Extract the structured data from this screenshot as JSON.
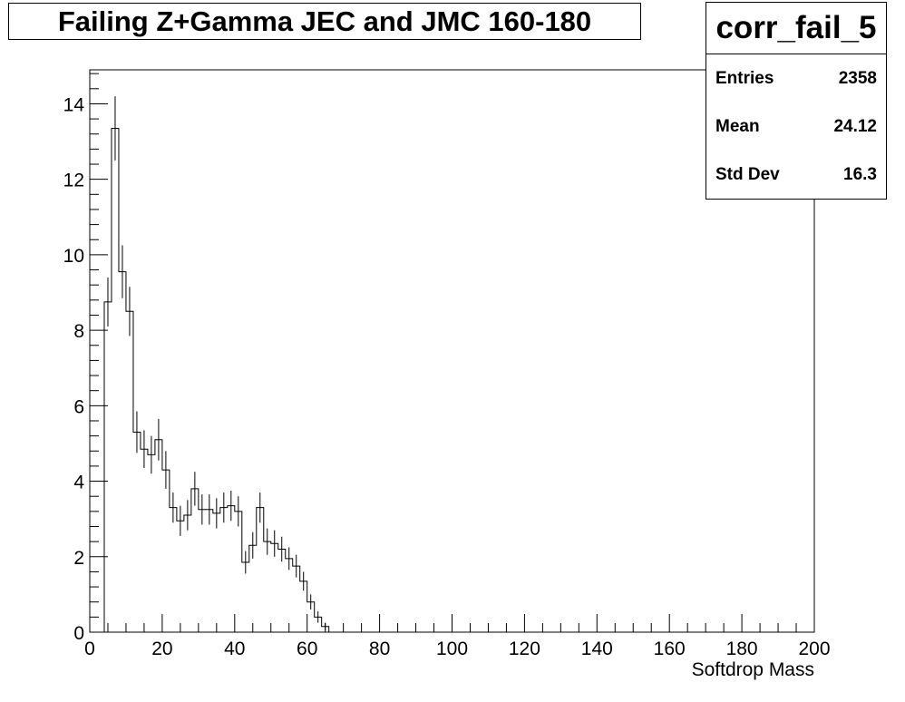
{
  "chart_data": {
    "type": "histogram",
    "title": "Failing Z+Gamma JEC and JMC 160-180",
    "xlabel": "Softdrop Mass",
    "ylabel": "",
    "xlim": [
      0,
      200
    ],
    "ylim": [
      0,
      14.9
    ],
    "bin_width": 2,
    "bin_starts": [
      4,
      6,
      8,
      10,
      12,
      14,
      16,
      18,
      20,
      22,
      24,
      26,
      28,
      30,
      32,
      34,
      36,
      38,
      40,
      42,
      44,
      46,
      48,
      50,
      52,
      54,
      56,
      58,
      60,
      62,
      64
    ],
    "values": [
      8.75,
      13.35,
      9.55,
      8.5,
      5.3,
      4.85,
      4.7,
      5.1,
      4.3,
      3.3,
      2.95,
      3.1,
      3.8,
      3.25,
      3.25,
      3.15,
      3.3,
      3.35,
      3.2,
      1.85,
      2.3,
      3.3,
      2.4,
      2.35,
      2.2,
      1.95,
      1.75,
      1.35,
      0.8,
      0.4,
      0.15
    ],
    "errors": [
      0.65,
      0.85,
      0.7,
      0.65,
      0.55,
      0.5,
      0.5,
      0.55,
      0.5,
      0.4,
      0.4,
      0.4,
      0.45,
      0.4,
      0.4,
      0.4,
      0.4,
      0.4,
      0.4,
      0.3,
      0.35,
      0.4,
      0.35,
      0.35,
      0.33,
      0.3,
      0.3,
      0.25,
      0.2,
      0.15,
      0.1
    ],
    "x_ticks": [
      "0",
      "20",
      "40",
      "60",
      "80",
      "100",
      "120",
      "140",
      "160",
      "180",
      "200"
    ],
    "y_ticks": [
      "0",
      "2",
      "4",
      "6",
      "8",
      "10",
      "12",
      "14"
    ],
    "stats": {
      "name": "corr_fail_5",
      "entries_label": "Entries",
      "entries": "2358",
      "mean_label": "Mean",
      "mean": "24.12",
      "stddev_label": "Std Dev",
      "stddev": "16.3"
    },
    "grid": false,
    "legend": "top-right"
  }
}
